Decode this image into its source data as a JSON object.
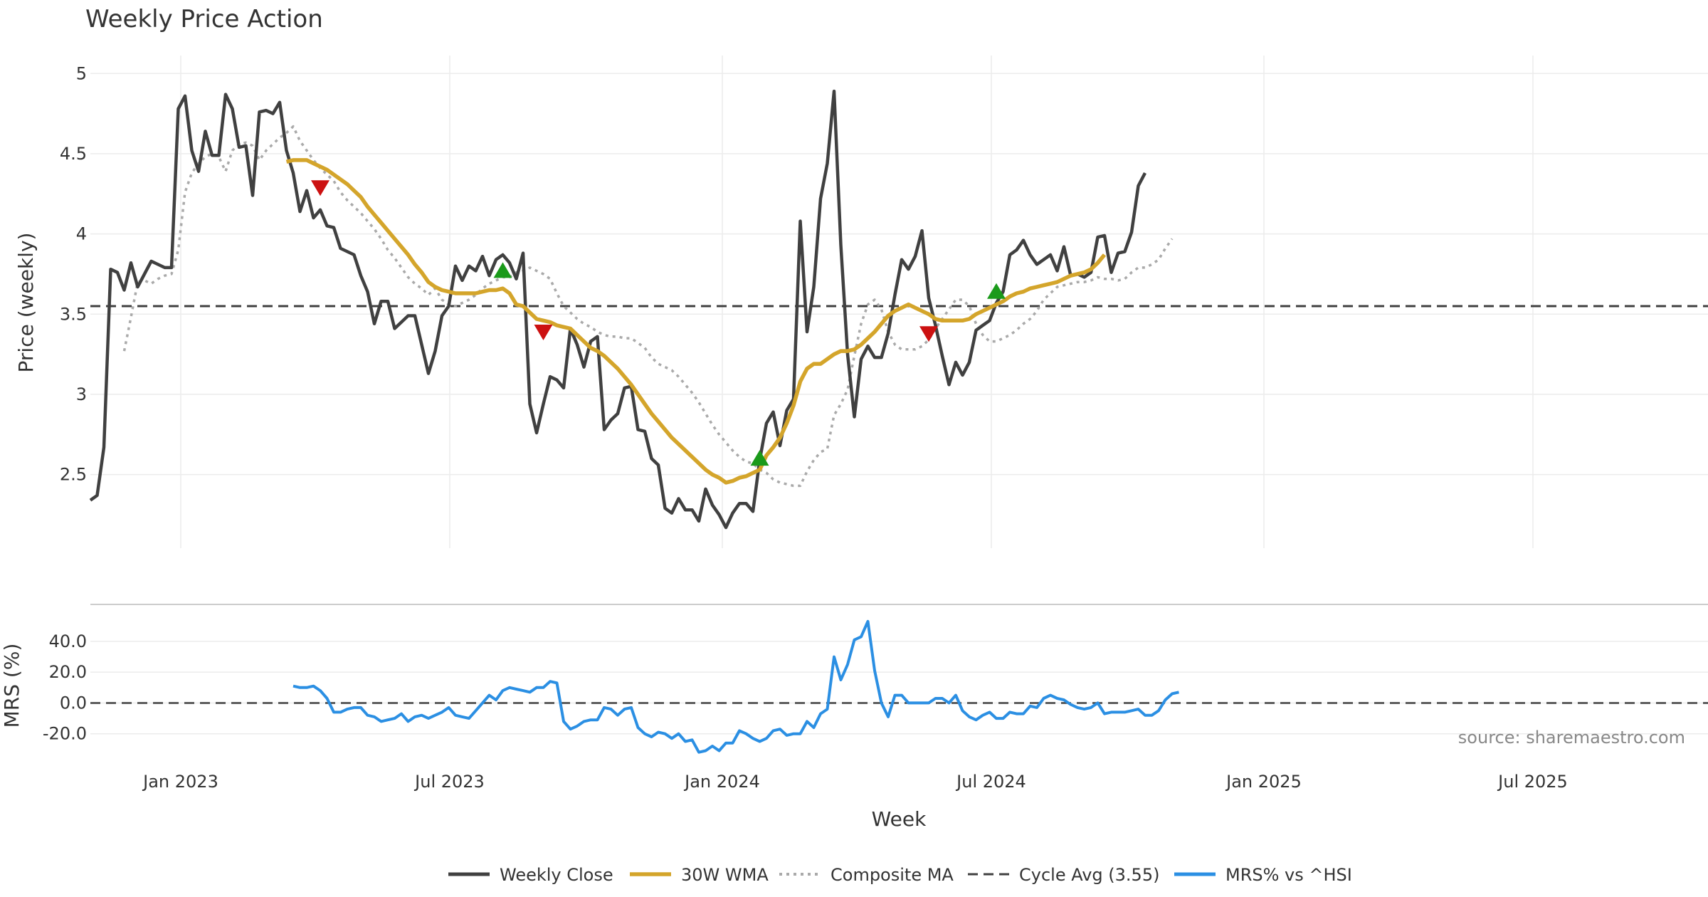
{
  "chart_data": {
    "type": "line",
    "title": "Weekly Price Action",
    "xlabel": "Week",
    "x_ticks": [
      "Jan 2023",
      "Jul 2023",
      "Jan 2024",
      "Jul 2024",
      "Jan 2025",
      "Jul 2025"
    ],
    "price_panel": {
      "ylabel": "Price (weekly)",
      "ylim": [
        2.05,
        5.05
      ],
      "y_ticks": [
        "2.5",
        "3",
        "3.5",
        "4",
        "4.5",
        "5"
      ],
      "grid": true
    },
    "mrs_panel": {
      "ylabel": "MRS (%)",
      "ylim": [
        -28,
        58
      ],
      "y_ticks": [
        "-20.0",
        "0.0",
        "20.0",
        "40.0"
      ],
      "grid": true
    },
    "cycle_avg": 3.55,
    "series": [
      {
        "name": "Weekly Close",
        "color": "#404040",
        "style": "solid",
        "start": 0,
        "values": [
          2.34,
          2.37,
          2.67,
          3.78,
          3.76,
          3.65,
          3.82,
          3.67,
          3.75,
          3.83,
          3.81,
          3.79,
          3.79,
          4.78,
          4.86,
          4.52,
          4.39,
          4.64,
          4.49,
          4.49,
          4.87,
          4.78,
          4.54,
          4.55,
          4.24,
          4.76,
          4.77,
          4.75,
          4.82,
          4.52,
          4.38,
          4.14,
          4.27,
          4.1,
          4.15,
          4.05,
          4.04,
          3.91,
          3.89,
          3.87,
          3.74,
          3.64,
          3.44,
          3.58,
          3.58,
          3.41,
          3.45,
          3.49,
          3.49,
          3.31,
          3.13,
          3.27,
          3.49,
          3.55,
          3.8,
          3.71,
          3.8,
          3.77,
          3.86,
          3.74,
          3.84,
          3.87,
          3.82,
          3.72,
          3.88,
          2.94,
          2.76,
          2.94,
          3.11,
          3.09,
          3.04,
          3.41,
          3.31,
          3.17,
          3.33,
          3.36,
          2.78,
          2.84,
          2.88,
          3.04,
          3.05,
          2.78,
          2.77,
          2.6,
          2.56,
          2.29,
          2.26,
          2.35,
          2.28,
          2.28,
          2.21,
          2.41,
          2.31,
          2.25,
          2.17,
          2.26,
          2.32,
          2.32,
          2.27,
          2.59,
          2.82,
          2.89,
          2.68,
          2.9,
          2.97,
          4.08,
          3.39,
          3.67,
          4.22,
          4.44,
          4.89,
          3.93,
          3.25,
          2.86,
          3.22,
          3.3,
          3.23,
          3.23,
          3.38,
          3.62,
          3.84,
          3.78,
          3.86,
          4.02,
          3.6,
          3.43,
          3.24,
          3.06,
          3.2,
          3.12,
          3.2,
          3.4,
          3.43,
          3.46,
          3.57,
          3.64,
          3.87,
          3.9,
          3.96,
          3.87,
          3.81,
          3.84,
          3.87,
          3.77,
          3.92,
          3.74,
          3.75,
          3.73,
          3.76,
          3.98,
          3.99,
          3.76,
          3.88,
          3.89,
          4.01,
          4.3,
          4.38
        ]
      },
      {
        "name": "30W WMA",
        "color": "#d4a52b",
        "style": "solid",
        "start": 29,
        "values": [
          4.45,
          4.46,
          4.46,
          4.46,
          4.44,
          4.42,
          4.4,
          4.37,
          4.34,
          4.31,
          4.27,
          4.23,
          4.17,
          4.12,
          4.07,
          4.02,
          3.97,
          3.92,
          3.87,
          3.81,
          3.76,
          3.7,
          3.67,
          3.65,
          3.64,
          3.63,
          3.63,
          3.63,
          3.63,
          3.64,
          3.65,
          3.65,
          3.66,
          3.63,
          3.56,
          3.55,
          3.51,
          3.47,
          3.46,
          3.45,
          3.43,
          3.42,
          3.41,
          3.37,
          3.33,
          3.29,
          3.27,
          3.24,
          3.2,
          3.16,
          3.11,
          3.06,
          3.0,
          2.94,
          2.88,
          2.83,
          2.78,
          2.73,
          2.69,
          2.65,
          2.61,
          2.57,
          2.53,
          2.5,
          2.48,
          2.45,
          2.46,
          2.48,
          2.49,
          2.51,
          2.53,
          2.62,
          2.67,
          2.73,
          2.82,
          2.93,
          3.08,
          3.16,
          3.19,
          3.19,
          3.22,
          3.25,
          3.27,
          3.27,
          3.28,
          3.31,
          3.35,
          3.39,
          3.44,
          3.49,
          3.52,
          3.54,
          3.56,
          3.54,
          3.52,
          3.5,
          3.47,
          3.46,
          3.46,
          3.46,
          3.46,
          3.47,
          3.5,
          3.52,
          3.54,
          3.56,
          3.58,
          3.61,
          3.63,
          3.64,
          3.66,
          3.67,
          3.68,
          3.69,
          3.7,
          3.72,
          3.74,
          3.75,
          3.76,
          3.78,
          3.82,
          3.87
        ]
      },
      {
        "name": "Composite MA",
        "color": "#aaaaaa",
        "style": "dotted",
        "start": 5,
        "values": [
          3.27,
          3.48,
          3.7,
          3.71,
          3.69,
          3.72,
          3.74,
          3.75,
          3.9,
          4.26,
          4.38,
          4.44,
          4.48,
          4.5,
          4.48,
          4.39,
          4.52,
          4.56,
          4.57,
          4.55,
          4.46,
          4.52,
          4.56,
          4.6,
          4.63,
          4.67,
          4.58,
          4.52,
          4.46,
          4.41,
          4.37,
          4.33,
          4.26,
          4.21,
          4.17,
          4.13,
          4.08,
          4.03,
          3.97,
          3.9,
          3.85,
          3.79,
          3.73,
          3.69,
          3.66,
          3.62,
          3.66,
          3.59,
          3.56,
          3.55,
          3.57,
          3.59,
          3.62,
          3.66,
          3.69,
          3.71,
          3.73,
          3.73,
          3.76,
          3.77,
          3.79,
          3.77,
          3.75,
          3.72,
          3.63,
          3.55,
          3.51,
          3.47,
          3.44,
          3.42,
          3.39,
          3.37,
          3.36,
          3.36,
          3.35,
          3.35,
          3.32,
          3.29,
          3.23,
          3.19,
          3.17,
          3.15,
          3.11,
          3.06,
          3.01,
          2.95,
          2.88,
          2.81,
          2.75,
          2.7,
          2.65,
          2.61,
          2.58,
          2.57,
          2.53,
          2.51,
          2.47,
          2.45,
          2.44,
          2.43,
          2.43,
          2.52,
          2.59,
          2.64,
          2.66,
          2.87,
          2.94,
          3.03,
          3.24,
          3.44,
          3.56,
          3.59,
          3.53,
          3.39,
          3.31,
          3.28,
          3.28,
          3.28,
          3.3,
          3.34,
          3.41,
          3.47,
          3.53,
          3.59,
          3.59,
          3.55,
          3.44,
          3.37,
          3.33,
          3.33,
          3.35,
          3.37,
          3.4,
          3.44,
          3.47,
          3.52,
          3.59,
          3.63,
          3.67,
          3.68,
          3.69,
          3.7,
          3.7,
          3.71,
          3.73,
          3.72,
          3.72,
          3.71,
          3.72,
          3.76,
          3.79,
          3.79,
          3.81,
          3.84,
          3.91,
          3.97
        ]
      },
      {
        "name": "Cycle Avg (3.55)",
        "color": "#404040",
        "style": "dashed"
      },
      {
        "name": "MRS% vs ^HSI",
        "color": "#2b8fe3",
        "style": "solid",
        "start": 30,
        "values": [
          11,
          10,
          10,
          11,
          8,
          3,
          -6,
          -6,
          -4,
          -3,
          -3,
          -8,
          -9,
          -12,
          -11,
          -10,
          -7,
          -12,
          -9,
          -8,
          -10,
          -8,
          -6,
          -3,
          -8,
          -9,
          -10,
          -5,
          0,
          5,
          2,
          8,
          10,
          9,
          8,
          7,
          10,
          10,
          14,
          13,
          -12,
          -17,
          -15,
          -12,
          -11,
          -11,
          -3,
          -4,
          -8,
          -4,
          -3,
          -16,
          -20,
          -22,
          -19,
          -20,
          -23,
          -20,
          -25,
          -24,
          -32,
          -31,
          -28,
          -31,
          -26,
          -26,
          -18,
          -20,
          -23,
          -25,
          -23,
          -18,
          -17,
          -21,
          -20,
          -20,
          -12,
          -16,
          -7,
          -4,
          30,
          15,
          25,
          41,
          43,
          53,
          21,
          0,
          -9,
          5,
          5,
          0,
          0,
          0,
          0,
          3,
          3,
          0,
          5,
          -5,
          -9,
          -11,
          -8,
          -6,
          -10,
          -10,
          -6,
          -7,
          -7,
          -2,
          -3,
          3,
          5,
          3,
          2,
          -1,
          -3,
          -4,
          -3,
          0,
          -7,
          -6,
          -6,
          -6,
          -5,
          -4,
          -8,
          -8,
          -5,
          2,
          6,
          7
        ]
      }
    ],
    "signals": {
      "buy": [
        {
          "week": 61,
          "price": 3.77
        },
        {
          "week": 99,
          "price": 2.6
        },
        {
          "week": 134,
          "price": 3.64
        }
      ],
      "sell": [
        {
          "week": 34,
          "price": 4.29
        },
        {
          "week": 67,
          "price": 3.39
        },
        {
          "week": 124,
          "price": 3.38
        }
      ]
    },
    "legend": {
      "placement": "bottom-center",
      "items": [
        "Weekly Close",
        "30W WMA",
        "Composite MA",
        "Cycle Avg (3.55)",
        "MRS% vs ^HSI"
      ]
    },
    "annotation": "source: sharemaestro.com"
  }
}
